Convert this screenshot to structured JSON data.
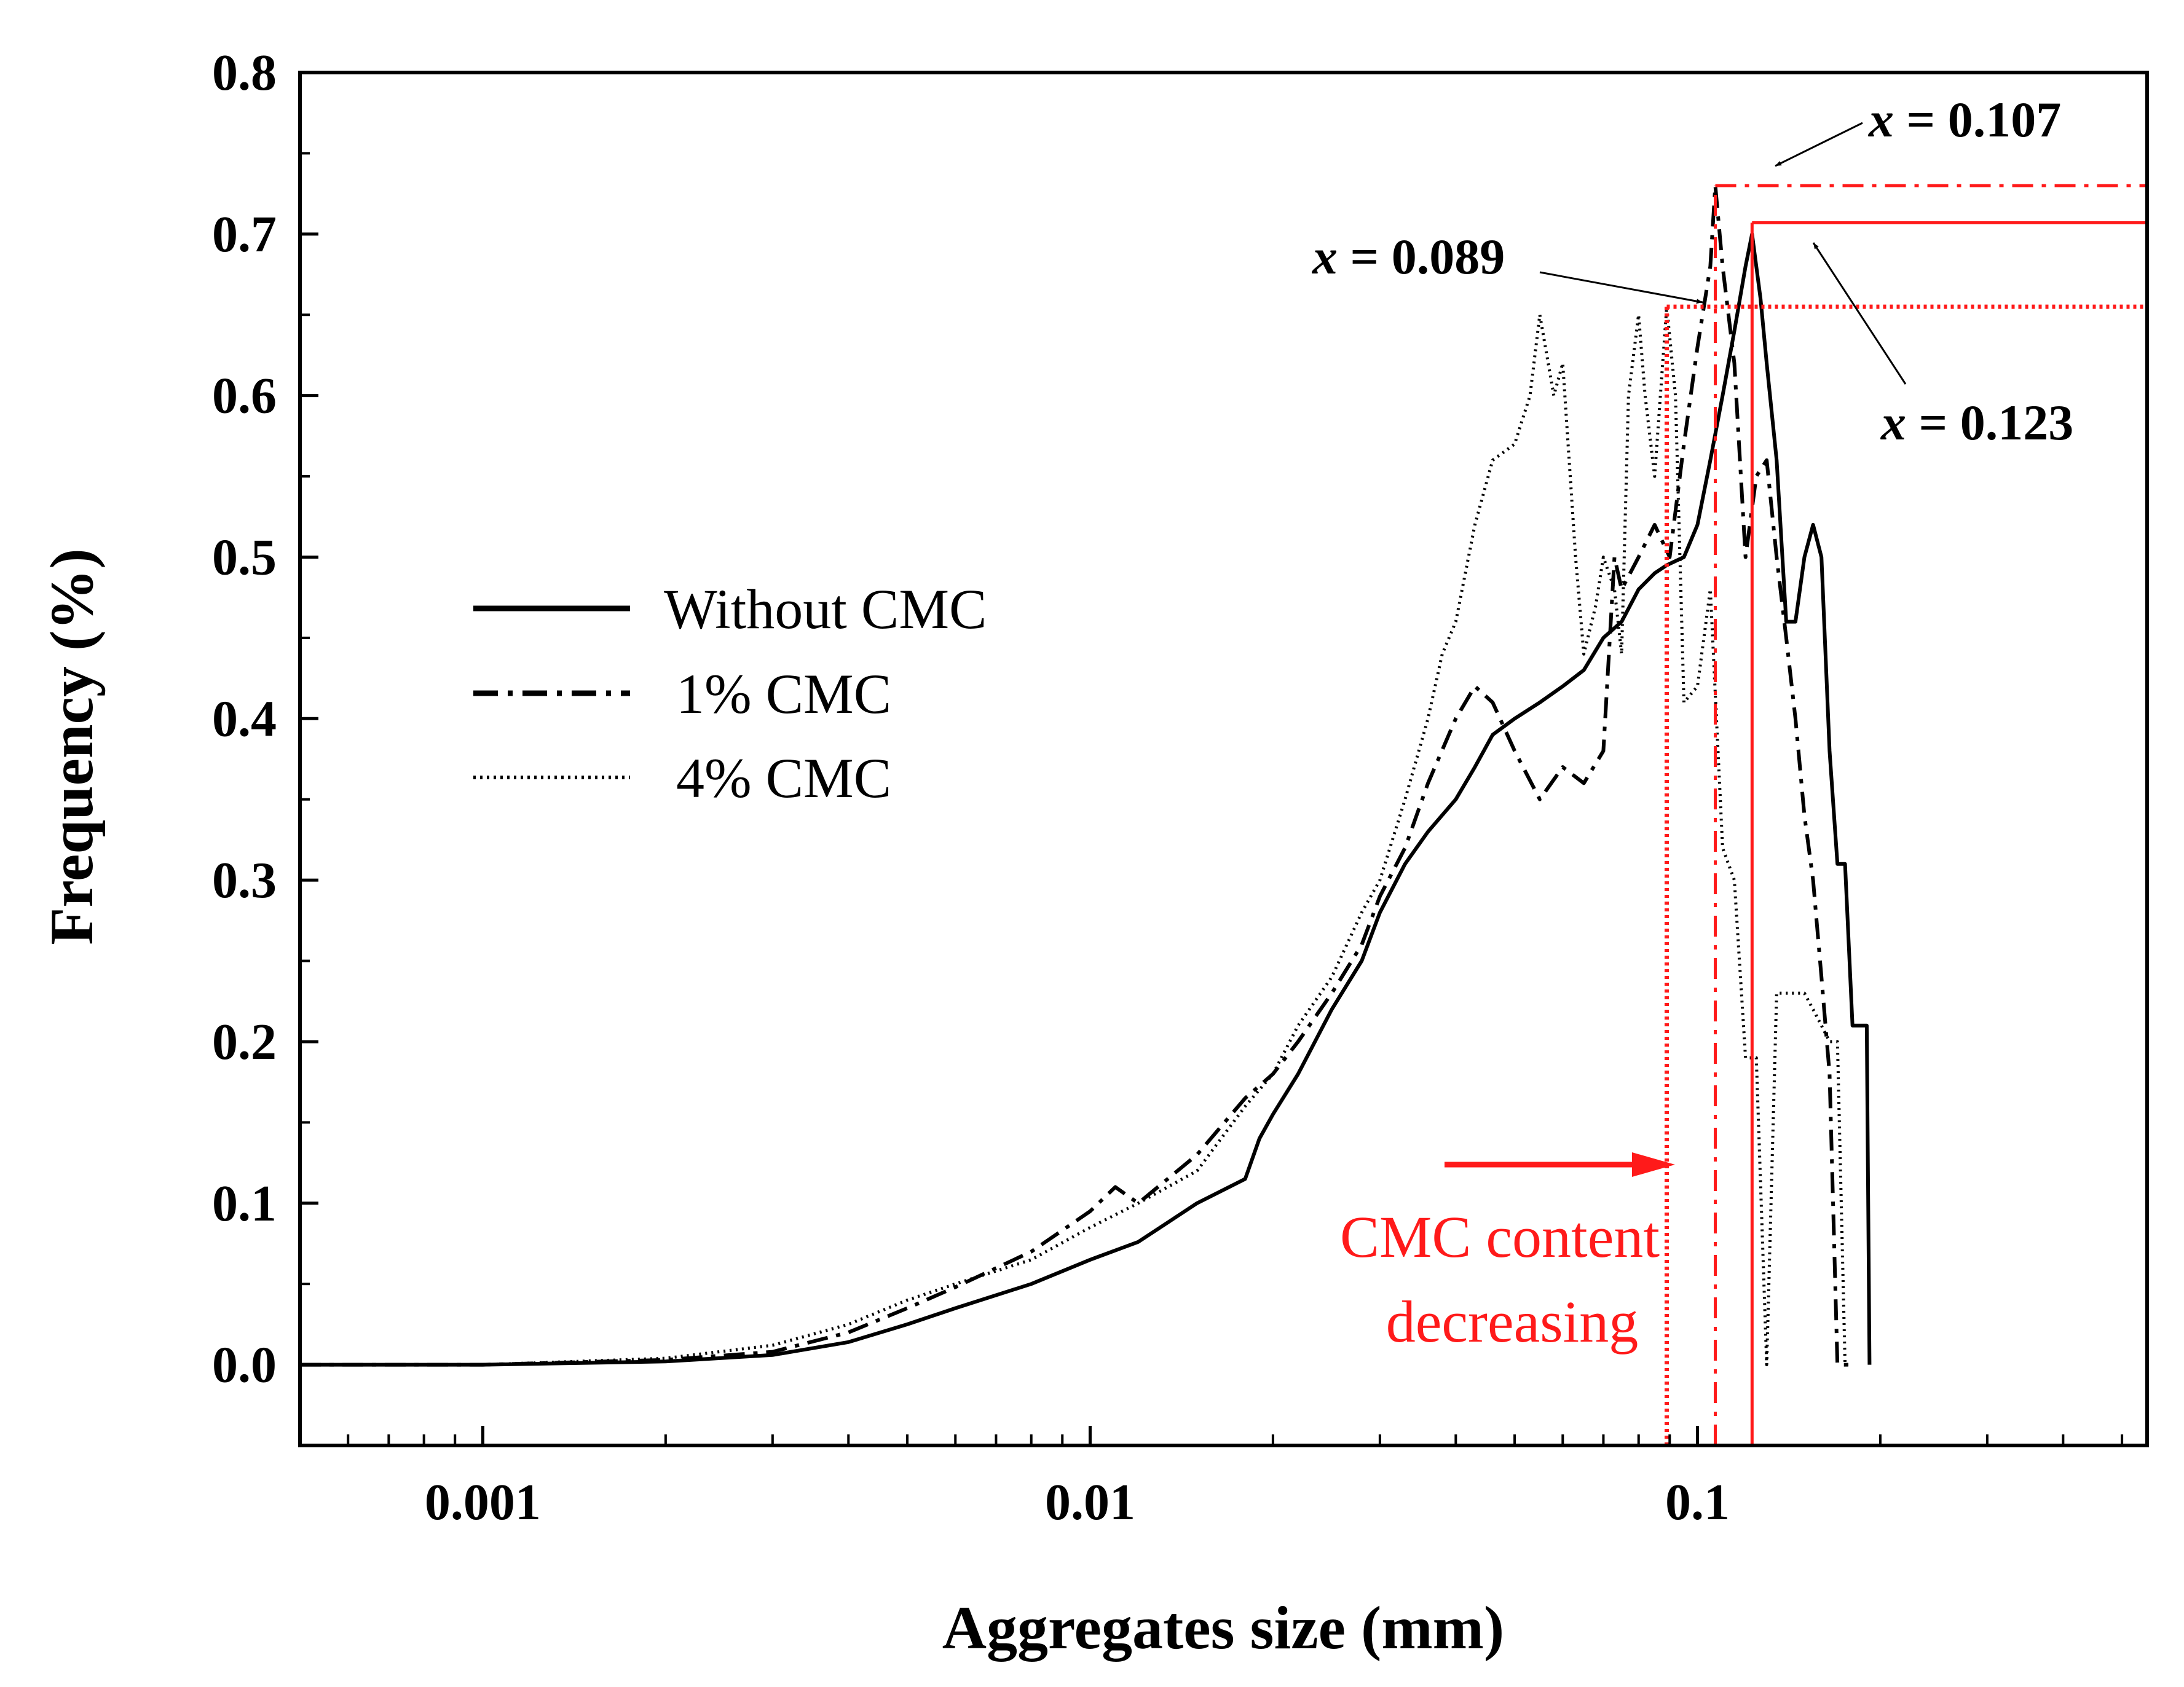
{
  "chart_data": {
    "type": "line",
    "xscale": "log",
    "xlim": [
      0.0005,
      0.55
    ],
    "ylim": [
      -0.05,
      0.8
    ],
    "xlabel": "Aggregates size (mm)",
    "ylabel": "Frequency (%)",
    "xticks": [
      {
        "value": 0.001,
        "label": "0.001"
      },
      {
        "value": 0.01,
        "label": "0.01"
      },
      {
        "value": 0.1,
        "label": "0.1"
      }
    ],
    "yticks": [
      {
        "value": 0.0,
        "label": "0.0"
      },
      {
        "value": 0.1,
        "label": "0.1"
      },
      {
        "value": 0.2,
        "label": "0.2"
      },
      {
        "value": 0.3,
        "label": "0.3"
      },
      {
        "value": 0.4,
        "label": "0.4"
      },
      {
        "value": 0.5,
        "label": "0.5"
      },
      {
        "value": 0.6,
        "label": "0.6"
      },
      {
        "value": 0.7,
        "label": "0.7"
      },
      {
        "value": 0.8,
        "label": "0.8"
      }
    ],
    "legend": {
      "position": "center-left",
      "entries": [
        "Without CMC",
        "1% CMC",
        "4% CMC"
      ]
    },
    "series": [
      {
        "name": "Without CMC",
        "style": "solid",
        "x": [
          0.0005,
          0.001,
          0.002,
          0.003,
          0.004,
          0.005,
          0.006,
          0.008,
          0.01,
          0.012,
          0.015,
          0.018,
          0.019,
          0.02,
          0.022,
          0.025,
          0.028,
          0.03,
          0.033,
          0.036,
          0.04,
          0.043,
          0.046,
          0.05,
          0.055,
          0.06,
          0.065,
          0.07,
          0.075,
          0.08,
          0.085,
          0.089,
          0.095,
          0.1,
          0.105,
          0.11,
          0.115,
          0.12,
          0.123,
          0.127,
          0.13,
          0.135,
          0.14,
          0.145,
          0.15,
          0.155,
          0.16,
          0.165,
          0.17,
          0.175,
          0.18,
          0.185,
          0.19,
          0.192
        ],
        "y": [
          0.0,
          0.0,
          0.002,
          0.006,
          0.014,
          0.025,
          0.035,
          0.05,
          0.065,
          0.076,
          0.1,
          0.115,
          0.14,
          0.155,
          0.18,
          0.22,
          0.25,
          0.28,
          0.31,
          0.33,
          0.35,
          0.37,
          0.39,
          0.4,
          0.41,
          0.42,
          0.43,
          0.45,
          0.46,
          0.48,
          0.49,
          0.495,
          0.5,
          0.52,
          0.56,
          0.6,
          0.64,
          0.68,
          0.7,
          0.66,
          0.62,
          0.56,
          0.46,
          0.46,
          0.5,
          0.52,
          0.5,
          0.38,
          0.31,
          0.31,
          0.21,
          0.21,
          0.21,
          0.0
        ]
      },
      {
        "name": "1% CMC",
        "style": "dashdot",
        "x": [
          0.0005,
          0.001,
          0.002,
          0.003,
          0.004,
          0.005,
          0.006,
          0.008,
          0.01,
          0.011,
          0.012,
          0.015,
          0.018,
          0.02,
          0.022,
          0.025,
          0.028,
          0.03,
          0.033,
          0.036,
          0.04,
          0.043,
          0.046,
          0.05,
          0.055,
          0.06,
          0.065,
          0.07,
          0.073,
          0.075,
          0.08,
          0.085,
          0.09,
          0.095,
          0.1,
          0.105,
          0.107,
          0.11,
          0.115,
          0.12,
          0.125,
          0.13,
          0.135,
          0.14,
          0.145,
          0.15,
          0.155,
          0.16,
          0.165,
          0.17,
          0.175,
          0.18
        ],
        "y": [
          0.0,
          0.0,
          0.003,
          0.008,
          0.02,
          0.035,
          0.048,
          0.07,
          0.095,
          0.11,
          0.1,
          0.13,
          0.165,
          0.18,
          0.2,
          0.23,
          0.26,
          0.29,
          0.32,
          0.36,
          0.4,
          0.42,
          0.41,
          0.38,
          0.35,
          0.37,
          0.36,
          0.38,
          0.5,
          0.48,
          0.5,
          0.52,
          0.5,
          0.57,
          0.63,
          0.68,
          0.73,
          0.68,
          0.62,
          0.5,
          0.55,
          0.56,
          0.5,
          0.45,
          0.4,
          0.34,
          0.3,
          0.24,
          0.18,
          0.0,
          0.0,
          0.0
        ]
      },
      {
        "name": "4% CMC",
        "style": "dotted",
        "x": [
          0.0005,
          0.001,
          0.002,
          0.003,
          0.004,
          0.005,
          0.006,
          0.008,
          0.01,
          0.012,
          0.015,
          0.018,
          0.02,
          0.022,
          0.025,
          0.028,
          0.03,
          0.033,
          0.036,
          0.038,
          0.04,
          0.043,
          0.046,
          0.05,
          0.053,
          0.055,
          0.058,
          0.06,
          0.063,
          0.065,
          0.068,
          0.07,
          0.073,
          0.075,
          0.077,
          0.08,
          0.082,
          0.085,
          0.089,
          0.092,
          0.095,
          0.1,
          0.105,
          0.11,
          0.115,
          0.12,
          0.125,
          0.13,
          0.135,
          0.14,
          0.145,
          0.15,
          0.155,
          0.16,
          0.165,
          0.17,
          0.175,
          0.18
        ],
        "y": [
          0.0,
          0.0,
          0.004,
          0.012,
          0.025,
          0.04,
          0.05,
          0.065,
          0.085,
          0.1,
          0.12,
          0.16,
          0.18,
          0.21,
          0.24,
          0.28,
          0.3,
          0.35,
          0.4,
          0.44,
          0.46,
          0.52,
          0.56,
          0.57,
          0.6,
          0.65,
          0.6,
          0.62,
          0.5,
          0.44,
          0.47,
          0.5,
          0.48,
          0.44,
          0.6,
          0.65,
          0.6,
          0.55,
          0.655,
          0.6,
          0.41,
          0.42,
          0.48,
          0.32,
          0.3,
          0.19,
          0.19,
          0.0,
          0.23,
          0.23,
          0.23,
          0.23,
          0.22,
          0.21,
          0.2,
          0.2,
          0.0,
          0.0
        ]
      }
    ],
    "markers": [
      {
        "series": "4% CMC",
        "x": 0.089,
        "y": 0.655,
        "style": "dotted",
        "label": "x = 0.089"
      },
      {
        "series": "1% CMC",
        "x": 0.107,
        "y": 0.73,
        "style": "dashdot",
        "label": "x = 0.107"
      },
      {
        "series": "Without CMC",
        "x": 0.123,
        "y": 0.707,
        "style": "solid",
        "label": "x = 0.123"
      }
    ],
    "annotation_arrow": {
      "text_line1": "CMC content",
      "text_line2": "decreasing"
    }
  },
  "colors": {
    "axis": "#000000",
    "marker": "#ff1a1a"
  }
}
